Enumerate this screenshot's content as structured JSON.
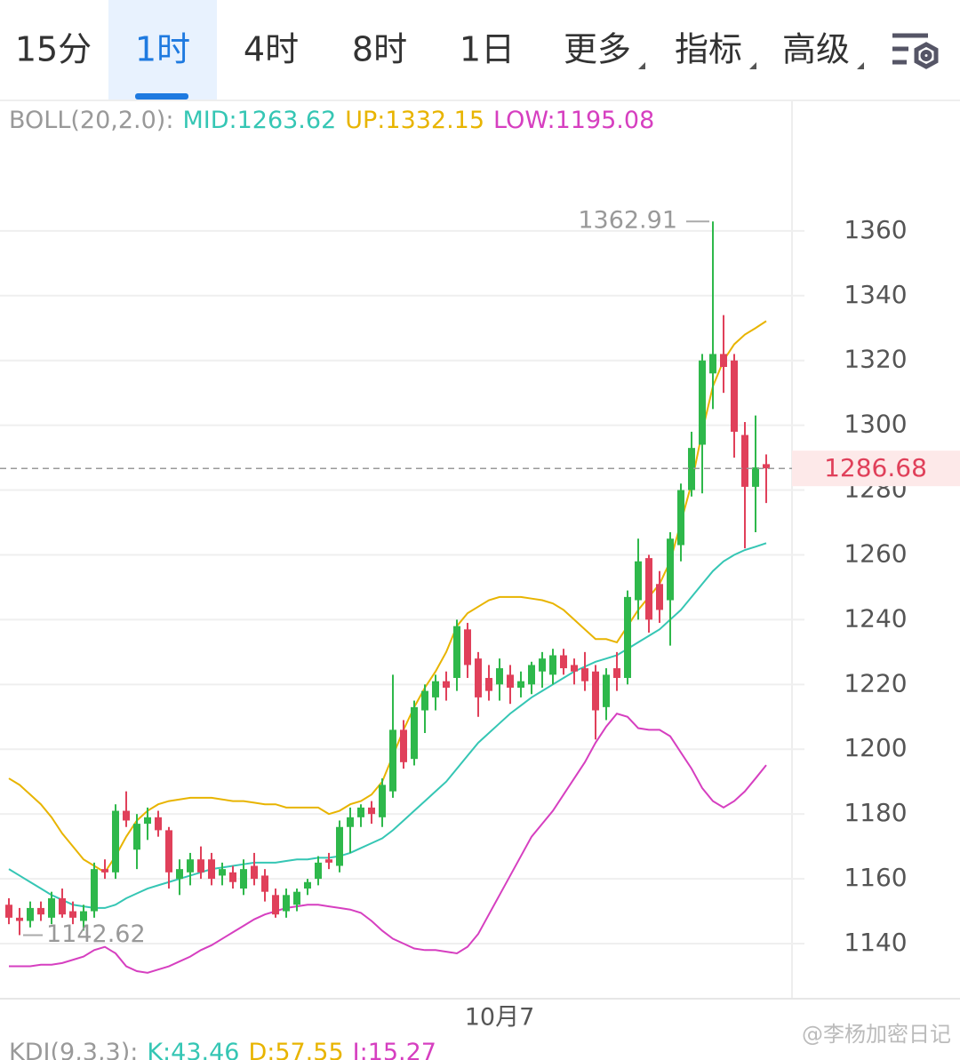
{
  "tabs": [
    "15分",
    "1时",
    "4时",
    "8时",
    "1日",
    "更多",
    "指标",
    "高级"
  ],
  "selected_tab": "1时",
  "watermark": "@李杨加密日记",
  "chart_data": {
    "type": "candlestick",
    "legend_title": "BOLL(20,2.0):",
    "up_color": "#2eb84b",
    "down_color": "#e0405a",
    "categories": [
      null,
      null,
      null,
      null,
      null,
      null,
      null,
      null,
      null,
      null,
      null,
      null,
      null,
      null,
      null,
      null,
      null,
      null,
      null,
      null,
      null,
      null,
      null,
      null,
      null,
      null,
      null,
      null,
      null,
      null,
      null,
      null,
      null,
      null,
      null,
      null,
      null,
      null,
      null,
      null,
      null,
      null,
      null,
      null,
      null,
      null,
      "10月7",
      null,
      null,
      null,
      null,
      null,
      null,
      null,
      null,
      null,
      null,
      null,
      null,
      null,
      null,
      null,
      null,
      null,
      null,
      null,
      null,
      null,
      null,
      null,
      null,
      null
    ],
    "open": [
      1152,
      1148,
      1147,
      1151,
      1148,
      1154,
      1150,
      1147,
      1150,
      1163,
      1162,
      1181,
      1169,
      1177,
      1179,
      1175,
      1160,
      1162,
      1166,
      1166,
      1161,
      1162,
      1157,
      1164,
      1161,
      1155,
      1150,
      1152,
      1157,
      1160,
      1166,
      1164,
      1176,
      1179,
      1182,
      1179,
      1187,
      1206,
      1197,
      1212,
      1216,
      1221,
      1222,
      1237,
      1228,
      1222,
      1220,
      1223,
      1219,
      1220,
      1224,
      1223,
      1229,
      1226,
      1225,
      1224,
      1213,
      1225,
      1222,
      1246,
      1259,
      1251,
      1246,
      1263,
      1280,
      1294,
      1316,
      1322,
      1320,
      1297,
      1281,
      1288
    ],
    "high": [
      1154,
      1151,
      1153,
      1153,
      1156,
      1157,
      1153,
      1152,
      1165,
      1166,
      1183,
      1187,
      1180,
      1182,
      1181,
      1176,
      1166,
      1168,
      1170,
      1168,
      1165,
      1164,
      1166,
      1168,
      1163,
      1157,
      1157,
      1157,
      1160,
      1167,
      1168,
      1178,
      1182,
      1183,
      1184,
      1191,
      1223,
      1209,
      1215,
      1220,
      1223,
      1224,
      1240,
      1239,
      1230,
      1226,
      1228,
      1226,
      1224,
      1227,
      1230,
      1231,
      1231,
      1228,
      1230,
      1226,
      1225,
      1230,
      1249,
      1265,
      1260,
      1255,
      1267,
      1282,
      1298,
      1322,
      1362.91,
      1334,
      1322,
      1301,
      1303,
      1291
    ],
    "low": [
      1146,
      1142.62,
      1145,
      1147,
      1146,
      1148,
      1146,
      1144,
      1148,
      1160,
      1160,
      1176,
      1163,
      1172,
      1173,
      1157,
      1155,
      1158,
      1160,
      1158,
      1158,
      1157,
      1155,
      1158,
      1153,
      1148,
      1148,
      1150,
      1155,
      1158,
      1163,
      1162,
      1168,
      1176,
      1177,
      1176,
      1185,
      1194,
      1195,
      1205,
      1212,
      1215,
      1218,
      1222,
      1210,
      1215,
      1215,
      1214,
      1216,
      1217,
      1219,
      1220,
      1223,
      1220,
      1218,
      1203,
      1209,
      1218,
      1220,
      1240,
      1236,
      1239,
      1232,
      1258,
      1278,
      1279,
      1305,
      1310,
      1290,
      1262,
      1267,
      1276
    ],
    "close": [
      1148,
      1147,
      1151,
      1149,
      1154,
      1149,
      1148,
      1150,
      1163,
      1162,
      1181,
      1178,
      1177,
      1179,
      1175,
      1162,
      1163,
      1166,
      1162,
      1160,
      1163,
      1159,
      1163,
      1160,
      1156,
      1149,
      1155,
      1156,
      1159,
      1165,
      1165,
      1176,
      1179,
      1182,
      1180,
      1189,
      1206,
      1196,
      1213,
      1218,
      1221,
      1219,
      1238,
      1226,
      1216,
      1218,
      1225,
      1219,
      1221,
      1226,
      1228,
      1229,
      1225,
      1224,
      1221,
      1212,
      1223,
      1222,
      1247,
      1258,
      1240,
      1243,
      1265,
      1280,
      1293,
      1320,
      1322,
      1318,
      1298,
      1281,
      1287,
      1286.68
    ],
    "bands": [
      {
        "name": "MID:",
        "color": "#35c6b4",
        "values": [
          1163,
          1161,
          1159,
          1157,
          1155,
          1153.5,
          1152,
          1151.5,
          1151,
          1151,
          1152,
          1154,
          1155.5,
          1157,
          1158,
          1159,
          1160,
          1161,
          1162,
          1163,
          1163.5,
          1164,
          1164.5,
          1165,
          1165,
          1165,
          1165.5,
          1166,
          1166,
          1166.5,
          1166.5,
          1167,
          1168,
          1169.5,
          1171,
          1172.5,
          1175,
          1178,
          1181,
          1184,
          1187,
          1190,
          1194,
          1198,
          1202,
          1205,
          1208,
          1211,
          1213.5,
          1216,
          1218,
          1220,
          1222,
          1224,
          1225.5,
          1227,
          1228,
          1229,
          1231,
          1233,
          1235,
          1237,
          1240,
          1243,
          1247,
          1251,
          1255,
          1258,
          1260,
          1261.5,
          1262.5,
          1263.62
        ]
      },
      {
        "name": "UP:",
        "color": "#e8b400",
        "values": [
          1191,
          1189,
          1186,
          1183,
          1179,
          1174,
          1170,
          1166,
          1164,
          1162,
          1167,
          1173,
          1178,
          1181,
          1183,
          1184,
          1184.5,
          1185,
          1185,
          1185,
          1184.5,
          1184,
          1184,
          1183.5,
          1183,
          1183,
          1182,
          1182,
          1182,
          1182,
          1180,
          1181,
          1183,
          1184,
          1186,
          1190,
          1198,
          1206,
          1213,
          1219,
          1224,
          1230,
          1238,
          1242,
          1244,
          1246,
          1247,
          1247,
          1247,
          1246.5,
          1246,
          1245,
          1243,
          1240,
          1237,
          1234,
          1234,
          1233,
          1238,
          1243,
          1247,
          1251,
          1258,
          1270,
          1282,
          1298,
          1312,
          1320,
          1325,
          1328,
          1330,
          1332.15
        ]
      },
      {
        "name": "LOW:",
        "color": "#d63fc0",
        "values": [
          1133,
          1133,
          1133,
          1133.5,
          1133.5,
          1134,
          1135,
          1136,
          1138,
          1139,
          1137,
          1133,
          1131.5,
          1131,
          1132,
          1133,
          1134.5,
          1136,
          1138,
          1139.5,
          1141.5,
          1143.5,
          1145.5,
          1147.5,
          1149,
          1150,
          1151,
          1151.5,
          1152,
          1152,
          1151.5,
          1151,
          1150.5,
          1149.5,
          1147,
          1144,
          1141.5,
          1140,
          1138.5,
          1138,
          1138,
          1137.5,
          1137,
          1139,
          1143,
          1149,
          1155,
          1161,
          1167,
          1173,
          1177,
          1181,
          1186,
          1191,
          1196,
          1202,
          1207,
          1211,
          1210,
          1206.5,
          1206,
          1206,
          1204,
          1199,
          1194,
          1188,
          1184,
          1182,
          1184,
          1187,
          1191,
          1195.08
        ]
      }
    ],
    "ylim": [
      1123,
      1400
    ],
    "yticks": [
      1140,
      1160,
      1180,
      1200,
      1220,
      1240,
      1260,
      1280,
      1300,
      1320,
      1340,
      1360
    ],
    "grid": true,
    "kdj": {
      "title": "KDJ(9,3,3):",
      "items": [
        {
          "name": "K:",
          "value": 43.46,
          "color": "#35c6b4"
        },
        {
          "name": "D:",
          "value": 57.55,
          "color": "#e8b400"
        },
        {
          "name": "J:",
          "value": 15.27,
          "color": "#d63fc0"
        }
      ]
    }
  }
}
